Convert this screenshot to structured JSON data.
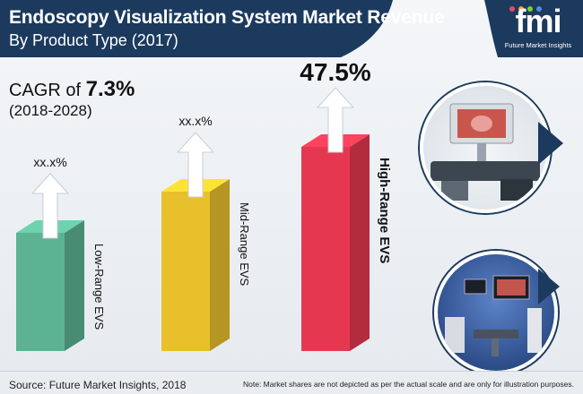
{
  "header": {
    "title": "Endoscopy Visualization System Market Revenue",
    "subtitle": "By Product Type (2017)",
    "logo_text": "fmi",
    "logo_subtext": "Future Market Insights",
    "band_color": "#1c3a5e"
  },
  "cagr": {
    "prefix": "CAGR of",
    "value": "7.3%",
    "period": "(2018-2028)"
  },
  "chart_data": {
    "type": "bar",
    "categories": [
      "Low-Range EVS",
      "Mid-Range EVS",
      "High-Range EVS"
    ],
    "value_labels": [
      "xx.x%",
      "xx.x%",
      "47.5%"
    ],
    "values": [
      null,
      null,
      47.5
    ],
    "colors": [
      "#5cb394",
      "#e8c02c",
      "#e53850"
    ],
    "highlighted_category": "High-Range EVS",
    "title": "",
    "xlabel": "",
    "ylabel": "",
    "grid": false,
    "legend": "none"
  },
  "footer": {
    "source": "Source: Future Market Insights, 2018",
    "note": "Note: Market shares are not depicted as per the actual scale and are only for illustration purposes."
  },
  "images": {
    "top_photo": "endoscopy-tower-system",
    "bottom_photo": "operating-room-monitors"
  }
}
